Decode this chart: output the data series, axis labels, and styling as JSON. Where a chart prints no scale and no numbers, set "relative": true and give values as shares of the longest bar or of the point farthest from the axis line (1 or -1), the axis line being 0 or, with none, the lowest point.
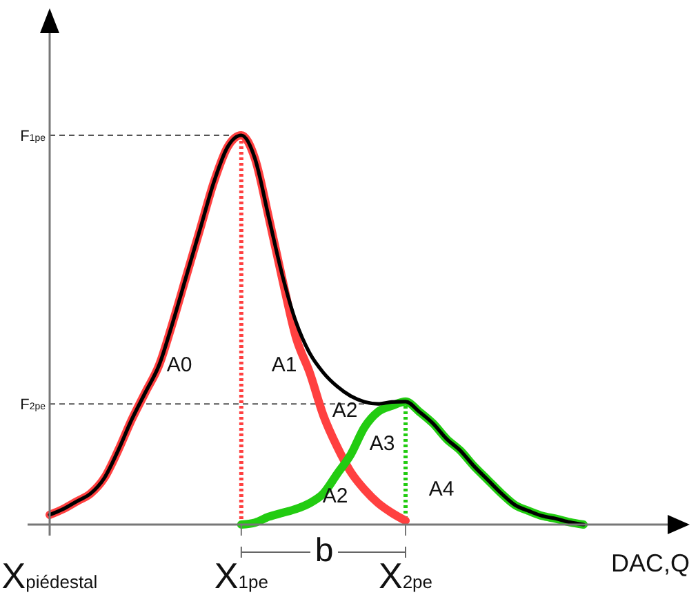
{
  "chart_data": {
    "type": "line",
    "relative": true,
    "xlabel": "DAC,Q",
    "categories": [
      "X$_{piédestal}$",
      null,
      null,
      null,
      null,
      null,
      null,
      null,
      null,
      null,
      null,
      null,
      null,
      null,
      "X$_{1pe}$",
      null,
      null,
      null,
      null,
      null,
      null,
      null,
      null,
      null,
      null,
      null,
      "X$_{2pe}$",
      null,
      null,
      null,
      null,
      null,
      null,
      null,
      null,
      null,
      null,
      null,
      null,
      null
    ],
    "series": [
      {
        "color": "#ff4040",
        "values": [
          0.025,
          0.04,
          0.06,
          0.08,
          0.12,
          0.19,
          0.27,
          0.34,
          0.41,
          0.52,
          0.64,
          0.76,
          0.88,
          0.97,
          1.0,
          0.94,
          0.79,
          0.63,
          0.48,
          0.39,
          0.28,
          0.2,
          0.135,
          0.09,
          0.055,
          0.03,
          0.01,
          null,
          null,
          null,
          null,
          null,
          null,
          null,
          null,
          null,
          null,
          null,
          null,
          null
        ]
      },
      {
        "color": "#22cc11",
        "values": [
          null,
          null,
          null,
          null,
          null,
          null,
          null,
          null,
          null,
          null,
          null,
          null,
          null,
          null,
          0,
          0.005,
          0.02,
          0.03,
          0.04,
          0.055,
          0.08,
          0.13,
          0.18,
          0.25,
          0.29,
          0.305,
          0.316,
          0.29,
          0.26,
          0.22,
          0.19,
          0.15,
          0.115,
          0.08,
          0.05,
          0.035,
          0.022,
          0.015,
          0.006,
          0
        ]
      },
      {
        "color": "#000000",
        "values": [
          0.025,
          0.04,
          0.06,
          0.08,
          0.12,
          0.19,
          0.27,
          0.34,
          0.41,
          0.52,
          0.64,
          0.76,
          0.88,
          0.97,
          1.0,
          0.94,
          0.79,
          0.64,
          0.52,
          0.44,
          0.39,
          0.355,
          0.33,
          0.315,
          0.31,
          0.315,
          0.316,
          0.29,
          0.26,
          0.22,
          0.19,
          0.15,
          0.115,
          0.08,
          0.05,
          0.035,
          0.022,
          0.015,
          0.006,
          0
        ]
      }
    ],
    "ref_lines": [
      {
        "axis": "y",
        "value": 1,
        "label": "F$_{1pe}$",
        "line_style": "dashed",
        "color": "#555555"
      },
      {
        "axis": "y",
        "value": 0.31,
        "label": "F$_{2pe}$",
        "line_style": "dashed",
        "color": "#555555"
      },
      {
        "axis": "x",
        "value": "X$_{1pe}$",
        "line_style": "dotted",
        "color": "#ff4040"
      },
      {
        "axis": "x",
        "value": "X$_{2pe}$",
        "line_style": "dotted",
        "color": "#22cc11"
      }
    ],
    "annotations": [
      "A0",
      "A1",
      "A2",
      "A3",
      "A2",
      "A4",
      "b"
    ],
    "grid": false,
    "marker": "none",
    "line_style": "solid"
  }
}
